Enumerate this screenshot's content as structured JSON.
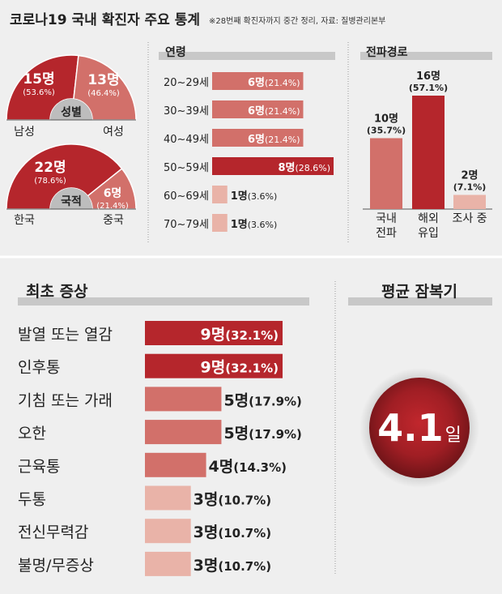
{
  "header": {
    "title": "코로나19 국내 확진자 주요 통계",
    "note": "※28번째 확진자까지 중간 정리, 자료: 질병관리본부"
  },
  "colors": {
    "dark": "#b5262c",
    "mid": "#d2706a",
    "light": "#e9b3a8",
    "bg": "#efefef",
    "header_bar": "#c8c8c8",
    "text": "#222222"
  },
  "chart_data": [
    {
      "type": "pie",
      "title": "성별",
      "labels": [
        "남성",
        "여성"
      ],
      "values": [
        15,
        13
      ],
      "value_labels": [
        "15명",
        "13명"
      ],
      "pct_labels": [
        "(53.6%)",
        "(46.4%)"
      ]
    },
    {
      "type": "pie",
      "title": "국적",
      "labels": [
        "한국",
        "중국"
      ],
      "values": [
        22,
        6
      ],
      "value_labels": [
        "22명",
        "6명"
      ],
      "pct_labels": [
        "(78.6%)",
        "(21.4%)"
      ]
    },
    {
      "type": "bar",
      "orientation": "horizontal",
      "title": "연령",
      "categories": [
        "20~29세",
        "30~39세",
        "40~49세",
        "50~59세",
        "60~69세",
        "70~79세"
      ],
      "values": [
        6,
        6,
        6,
        8,
        1,
        1
      ],
      "value_labels": [
        "6명",
        "6명",
        "6명",
        "8명",
        "1명",
        "1명"
      ],
      "pct_labels": [
        "(21.4%)",
        "(21.4%)",
        "(21.4%)",
        "(28.6%)",
        "(3.6%)",
        "(3.6%)"
      ]
    },
    {
      "type": "bar",
      "orientation": "vertical",
      "title": "전파경로",
      "categories": [
        "국내\n전파",
        "해외\n유입",
        "조사 중"
      ],
      "values": [
        10,
        16,
        2
      ],
      "value_labels": [
        "10명",
        "16명",
        "2명"
      ],
      "pct_labels": [
        "(35.7%)",
        "(57.1%)",
        "(7.1%)"
      ]
    },
    {
      "type": "bar",
      "orientation": "horizontal",
      "title": "최초 증상",
      "categories": [
        "발열 또는 열감",
        "인후통",
        "기침 또는 가래",
        "오한",
        "근육통",
        "두통",
        "전신무력감",
        "불명/무증상"
      ],
      "values": [
        9,
        9,
        5,
        5,
        4,
        3,
        3,
        3
      ],
      "value_labels": [
        "9명",
        "9명",
        "5명",
        "5명",
        "4명",
        "3명",
        "3명",
        "3명"
      ],
      "pct_labels": [
        "(32.1%)",
        "(32.1%)",
        "(17.9%)",
        "(17.9%)",
        "(14.3%)",
        "(10.7%)",
        "(10.7%)",
        "(10.7%)"
      ]
    }
  ],
  "incubation": {
    "title": "평균 잠복기",
    "value": "4.1",
    "unit": "일"
  }
}
